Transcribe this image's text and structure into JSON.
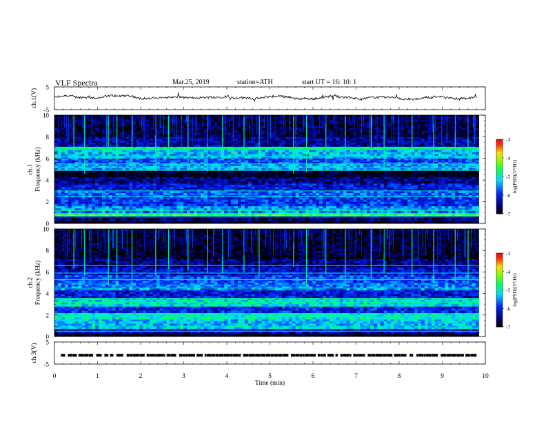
{
  "header": {
    "title": "VLF  Spectra",
    "date": "Mar.25, 2019",
    "station": "station=ATH",
    "start": "start  UT  =    16: 10: 1"
  },
  "chart_data": [
    {
      "type": "line",
      "panel": "ch1-waveform",
      "ylabel": "ch.1(V)",
      "ylim": [
        -5,
        5
      ],
      "yticks": [
        "5",
        "-5"
      ],
      "xlim": [
        0,
        10
      ],
      "baseline_v": 0.3,
      "color": "#000000"
    },
    {
      "type": "heatmap",
      "panel": "ch1-spectrogram",
      "ylabel": "ch.1\nFrequency (kHz)",
      "ylim": [
        0,
        10
      ],
      "yticks": [
        "0",
        "2",
        "4",
        "6",
        "8",
        "10"
      ],
      "xlim": [
        0,
        9.85
      ],
      "colorbar": {
        "label": "log(PSD)(V²/Hz)",
        "range": [
          -7,
          -3
        ],
        "ticks": [
          "-3",
          "-4",
          "-5",
          "-6",
          "-7"
        ]
      },
      "bands": [
        {
          "f": [
            0.0,
            0.25
          ],
          "level": -7.0
        },
        {
          "f": [
            0.25,
            0.7
          ],
          "level": -6.6
        },
        {
          "f": [
            0.7,
            0.95
          ],
          "level": -4.3
        },
        {
          "f": [
            0.95,
            1.6
          ],
          "level": -5.5
        },
        {
          "f": [
            1.6,
            2.4
          ],
          "level": -5.9
        },
        {
          "f": [
            2.4,
            3.0
          ],
          "level": -5.7
        },
        {
          "f": [
            3.0,
            3.7
          ],
          "level": -6.1
        },
        {
          "f": [
            3.7,
            4.3
          ],
          "level": -6.5
        },
        {
          "f": [
            4.3,
            4.9
          ],
          "level": -6.95
        },
        {
          "f": [
            4.9,
            5.5
          ],
          "level": -5.4
        },
        {
          "f": [
            5.5,
            6.0
          ],
          "level": -5.8
        },
        {
          "f": [
            6.0,
            6.8
          ],
          "level": -5.3
        },
        {
          "f": [
            6.8,
            7.1
          ],
          "level": -5.0
        },
        {
          "f": [
            7.1,
            8.0
          ],
          "level": -6.4
        },
        {
          "f": [
            8.0,
            10.0
          ],
          "level": -6.75
        }
      ],
      "lines_khz": [
        0.6,
        0.8,
        1.2,
        2.5,
        3.0,
        4.9,
        5.2,
        5.5,
        6.2,
        6.9
      ],
      "spike_times_min": [
        0.45,
        0.7,
        1.25,
        1.45,
        1.8,
        2.35,
        2.65,
        3.1,
        3.55,
        3.9,
        4.4,
        4.75,
        5.55,
        5.85,
        6.3,
        6.75,
        7.35,
        7.65,
        8.3,
        8.8,
        9.3,
        9.6
      ]
    },
    {
      "type": "heatmap",
      "panel": "ch2-spectrogram",
      "ylabel": "ch.2\nFrequency (kHz)",
      "ylim": [
        0,
        10
      ],
      "yticks": [
        "0",
        "2",
        "4",
        "6",
        "8",
        "10"
      ],
      "xlim": [
        0,
        9.85
      ],
      "colorbar": {
        "label": "log(PSD)(V²/Hz)",
        "range": [
          -7,
          -3
        ],
        "ticks": [
          "-3",
          "-4",
          "-5",
          "-6",
          "-7"
        ]
      },
      "bands": [
        {
          "f": [
            0.0,
            0.3
          ],
          "level": -6.9
        },
        {
          "f": [
            0.3,
            0.7
          ],
          "level": -6.3
        },
        {
          "f": [
            0.7,
            1.0
          ],
          "level": -5.2
        },
        {
          "f": [
            1.0,
            1.6
          ],
          "level": -5.3
        },
        {
          "f": [
            1.6,
            2.2
          ],
          "level": -5.0
        },
        {
          "f": [
            2.2,
            2.8
          ],
          "level": -6.0
        },
        {
          "f": [
            2.8,
            3.6
          ],
          "level": -5.1
        },
        {
          "f": [
            3.6,
            4.3
          ],
          "level": -6.1
        },
        {
          "f": [
            4.3,
            5.0
          ],
          "level": -5.6
        },
        {
          "f": [
            5.0,
            5.7
          ],
          "level": -5.8
        },
        {
          "f": [
            5.7,
            6.4
          ],
          "level": -6.2
        },
        {
          "f": [
            6.4,
            7.2
          ],
          "level": -6.5
        },
        {
          "f": [
            7.2,
            10.0
          ],
          "level": -6.85
        }
      ],
      "lines_khz": [
        0.5,
        1.8,
        2.0,
        3.2,
        3.5,
        4.5,
        5.3,
        5.9,
        6.6
      ],
      "spike_times_min": [
        0.45,
        0.7,
        1.25,
        1.45,
        1.8,
        2.35,
        2.65,
        3.1,
        3.55,
        3.9,
        4.4,
        4.75,
        5.55,
        5.85,
        6.3,
        6.75,
        7.35,
        7.65,
        8.3,
        8.8,
        9.3,
        9.6
      ]
    },
    {
      "type": "line",
      "panel": "ch3-signal",
      "ylabel": "ch.3(V)",
      "ylim": [
        -5,
        5
      ],
      "yticks": [
        "5",
        "-5"
      ],
      "xlim": [
        0,
        10
      ],
      "level_v": -1.0,
      "color": "#000000"
    }
  ],
  "xaxis": {
    "label": "Time  (min)",
    "ticks": [
      "0",
      "1",
      "2",
      "3",
      "4",
      "5",
      "6",
      "7",
      "8",
      "9",
      "10"
    ]
  }
}
